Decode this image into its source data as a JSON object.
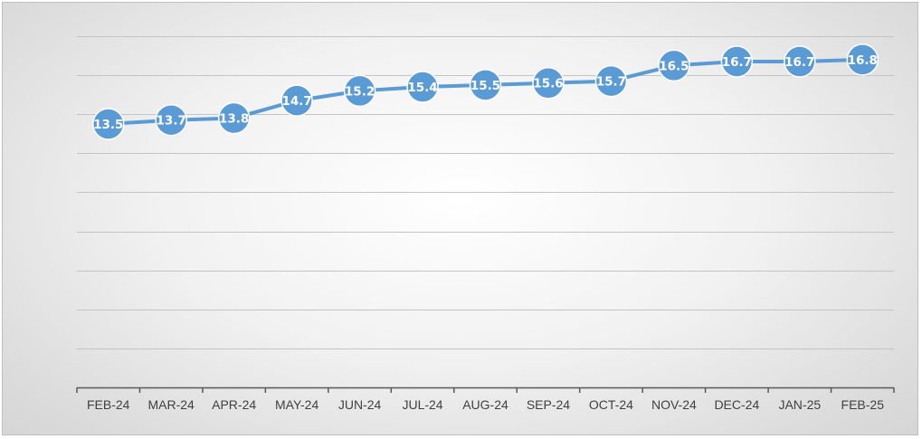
{
  "chart_data": {
    "type": "line",
    "title": "",
    "xlabel": "",
    "ylabel": "",
    "categories": [
      "FEB-24",
      "MAR-24",
      "APR-24",
      "MAY-24",
      "JUN-24",
      "JUL-24",
      "AUG-24",
      "SEP-24",
      "OCT-24",
      "NOV-24",
      "DEC-24",
      "JAN-25",
      "FEB-25"
    ],
    "series": [
      {
        "values": [
          13.5,
          13.7,
          13.8,
          14.7,
          15.2,
          15.4,
          15.5,
          15.6,
          15.7,
          16.5,
          16.7,
          16.7,
          16.8
        ],
        "color": "#5b9bd5"
      }
    ],
    "ylim": [
      0,
      18
    ],
    "y_grid_step": 2,
    "grid": true,
    "y_tick_labels_shown": false,
    "data_labels": true,
    "legend": "none"
  }
}
